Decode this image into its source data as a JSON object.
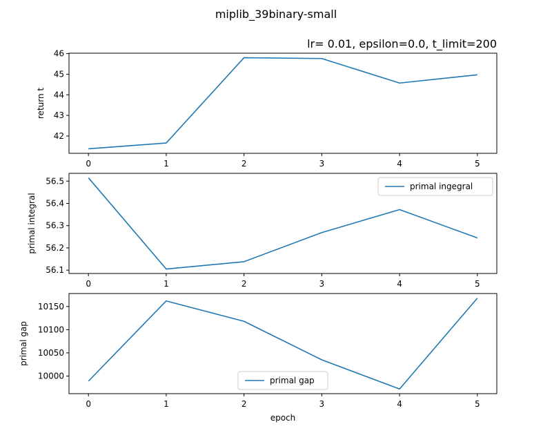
{
  "figure": {
    "suptitle": "miplib_39binary-small"
  },
  "chart_data": [
    {
      "type": "line",
      "title": "lr= 0.01, epsilon=0.0, t_limit=200",
      "xlabel": "",
      "ylabel": "return t",
      "x": [
        0,
        1,
        2,
        3,
        4,
        5
      ],
      "series": [
        {
          "values": [
            41.38,
            41.66,
            45.8,
            45.76,
            44.57,
            44.97
          ],
          "color": "#1f77b4"
        }
      ],
      "xlim": [
        -0.25,
        5.25
      ],
      "ylim": [
        41.16,
        46.02
      ],
      "xticks": [
        "0",
        "1",
        "2",
        "3",
        "4",
        "5"
      ],
      "yticks": [
        42,
        43,
        44,
        45,
        46
      ],
      "legend": null,
      "grid": false
    },
    {
      "type": "line",
      "title": "",
      "xlabel": "",
      "ylabel": "primal integral",
      "x": [
        0,
        1,
        2,
        3,
        4,
        5
      ],
      "series": [
        {
          "name": "primal ingegral",
          "values": [
            56.515,
            56.105,
            56.138,
            56.269,
            56.372,
            56.245
          ],
          "color": "#1f77b4"
        }
      ],
      "xlim": [
        -0.25,
        5.25
      ],
      "ylim": [
        56.085,
        56.535
      ],
      "xticks": [
        "0",
        "1",
        "2",
        "3",
        "4",
        "5"
      ],
      "yticks": [
        56.1,
        56.2,
        56.3,
        56.4,
        56.5
      ],
      "legend": "upper right",
      "grid": false
    },
    {
      "type": "line",
      "title": "",
      "xlabel": "epoch",
      "ylabel": "primal gap",
      "x": [
        0,
        1,
        2,
        3,
        4,
        5
      ],
      "series": [
        {
          "name": "primal gap",
          "values": [
            9989,
            10162,
            10118,
            10035,
            9972,
            10168
          ],
          "color": "#1f77b4"
        }
      ],
      "xlim": [
        -0.25,
        5.25
      ],
      "ylim": [
        9962,
        10178
      ],
      "xticks": [
        "0",
        "1",
        "2",
        "3",
        "4",
        "5"
      ],
      "yticks": [
        10000,
        10050,
        10100,
        10150
      ],
      "legend": "lower center",
      "grid": false
    }
  ]
}
